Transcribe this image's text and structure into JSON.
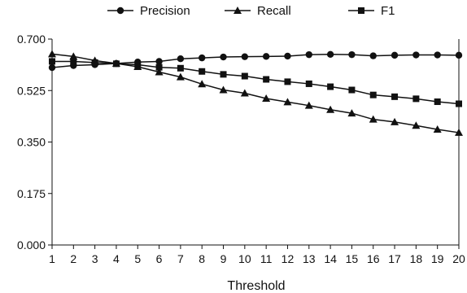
{
  "chart_data": {
    "type": "line",
    "title": "",
    "xlabel": "Threshold",
    "ylabel": "",
    "x": [
      1,
      2,
      3,
      4,
      5,
      6,
      7,
      8,
      9,
      10,
      11,
      12,
      13,
      14,
      15,
      16,
      17,
      18,
      19,
      20
    ],
    "ylim": [
      0,
      0.7
    ],
    "yticks": [
      "0.000",
      "0.175",
      "0.350",
      "0.525",
      "0.700"
    ],
    "grid": false,
    "legend_position": "top",
    "series": [
      {
        "name": "Precision",
        "marker": "circle",
        "values": [
          0.603,
          0.61,
          0.613,
          0.617,
          0.622,
          0.624,
          0.633,
          0.636,
          0.639,
          0.64,
          0.641,
          0.642,
          0.647,
          0.648,
          0.647,
          0.643,
          0.645,
          0.646,
          0.646,
          0.645
        ]
      },
      {
        "name": "Recall",
        "marker": "triangle",
        "values": [
          0.649,
          0.641,
          0.627,
          0.617,
          0.606,
          0.588,
          0.571,
          0.547,
          0.527,
          0.516,
          0.498,
          0.486,
          0.474,
          0.46,
          0.448,
          0.427,
          0.418,
          0.406,
          0.393,
          0.382
        ]
      },
      {
        "name": "F1",
        "marker": "square",
        "values": [
          0.624,
          0.624,
          0.62,
          0.616,
          0.613,
          0.604,
          0.601,
          0.59,
          0.58,
          0.574,
          0.563,
          0.555,
          0.548,
          0.538,
          0.527,
          0.51,
          0.504,
          0.497,
          0.487,
          0.48
        ]
      }
    ],
    "colors": {
      "line": "#111111",
      "axis": "#111111",
      "background": "#ffffff"
    }
  }
}
